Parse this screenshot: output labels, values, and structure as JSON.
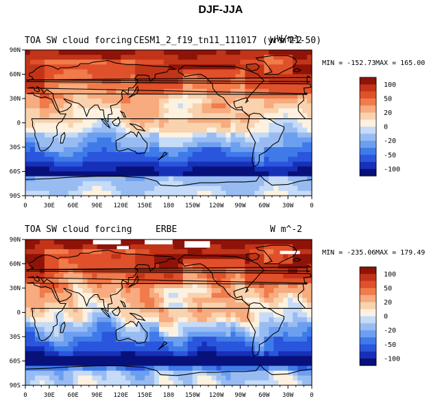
{
  "chart_data": {
    "type": "heatmap",
    "title": "DJF-JJA",
    "colors": {
      "levels": [
        "#08107a",
        "#1730b8",
        "#2a55dd",
        "#3f7ae9",
        "#6d9ff0",
        "#98bcf2",
        "#c5dbf7",
        "#fdf1df",
        "#f9d2ae",
        "#f7ab7e",
        "#f07b4b",
        "#e0502a",
        "#c23418",
        "#8e1308"
      ],
      "land": "#000000"
    },
    "colorbar_ticks": [
      "100",
      "50",
      "20",
      "0",
      "-20",
      "-50",
      "-100"
    ],
    "panels": [
      {
        "title_left": "TOA SW cloud forcing",
        "title_center": "CESM1_2_f19_tn11_111017 (yrs 21-50)",
        "title_right": "W m^-2",
        "units_overlay": "W/m²",
        "min_label": "MIN = -152.73",
        "max_label": "MAX = 165.00",
        "min": -152.73,
        "max": 165.0,
        "missing": false
      },
      {
        "title_left": "TOA SW cloud forcing",
        "title_center": "ERBE",
        "title_right": "W m^-2",
        "min_label": "MIN = -235.06",
        "max_label": "MAX = 179.49",
        "min": -235.06,
        "max": 179.49,
        "missing": true
      }
    ],
    "x_ticks": [
      "0",
      "30E",
      "60E",
      "90E",
      "120E",
      "150E",
      "180",
      "150W",
      "120W",
      "90W",
      "60W",
      "30W",
      "0"
    ],
    "x_values": [
      0,
      30,
      60,
      90,
      120,
      150,
      180,
      210,
      240,
      270,
      300,
      330,
      360
    ],
    "y_ticks": [
      "90N",
      "60N",
      "30N",
      "0",
      "30S",
      "60S",
      "90S"
    ],
    "y_values": [
      90,
      60,
      30,
      0,
      -30,
      -60,
      -90
    ],
    "xlim": [
      0,
      360
    ],
    "ylim": [
      -90,
      90
    ],
    "zlim": [
      -150,
      150
    ]
  }
}
